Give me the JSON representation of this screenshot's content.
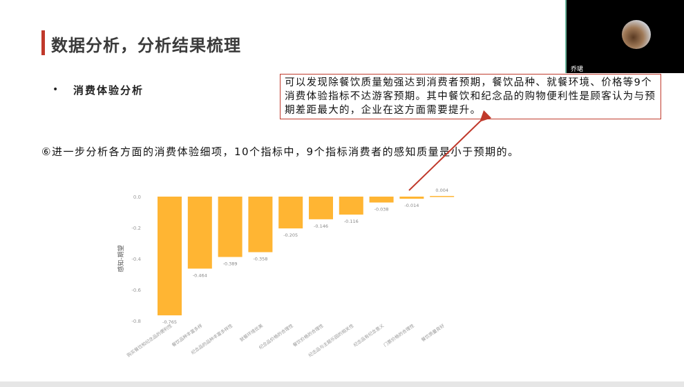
{
  "slide": {
    "title": "数据分析，分析结果梳理",
    "bullet": "•",
    "section": "消费体验分析",
    "description": "⑥进一步分析各方面的消费体验细项，10个指标中，9个指标消费者的感知质量是小于预期的。",
    "callout": "可以发现除餐饮质量勉强达到消费者预期，餐饮品种、就餐环境、价格等9个消费体验指标不达游客预期。其中餐饮和纪念品的购物便利性是顾客认为与预期差距最大的，企业在这方面需要提升。"
  },
  "webcam": {
    "name": "乔珺"
  },
  "colors": {
    "bar": "#FFB533",
    "accent": "#c0392b"
  },
  "chart_data": {
    "type": "bar",
    "ylabel": "感知-期望",
    "ylim": [
      -0.8,
      0.0
    ],
    "yticks": [
      "0.0",
      "-0.2",
      "-0.4",
      "-0.6",
      "-0.8"
    ],
    "grid": false,
    "categories": [
      "购买餐饮和纪念品的便利性",
      "餐饮品种丰富多样",
      "纪念品的品种丰富多样性",
      "就餐环境优美",
      "纪念品价格的合理性",
      "餐饮价格的合理性",
      "纪念品与主题乐园的相关性",
      "纪念品有纪念意义",
      "门票价格的合理性",
      "餐饮质量良好"
    ],
    "values": [
      -0.765,
      -0.464,
      -0.389,
      -0.358,
      -0.205,
      -0.146,
      -0.116,
      -0.038,
      -0.014,
      0.004
    ],
    "labels": [
      "-0.765",
      "-0.464",
      "-0.389",
      "-0.358",
      "-0.205",
      "-0.146",
      "-0.116",
      "-0.038",
      "-0.014",
      "0.004"
    ]
  }
}
